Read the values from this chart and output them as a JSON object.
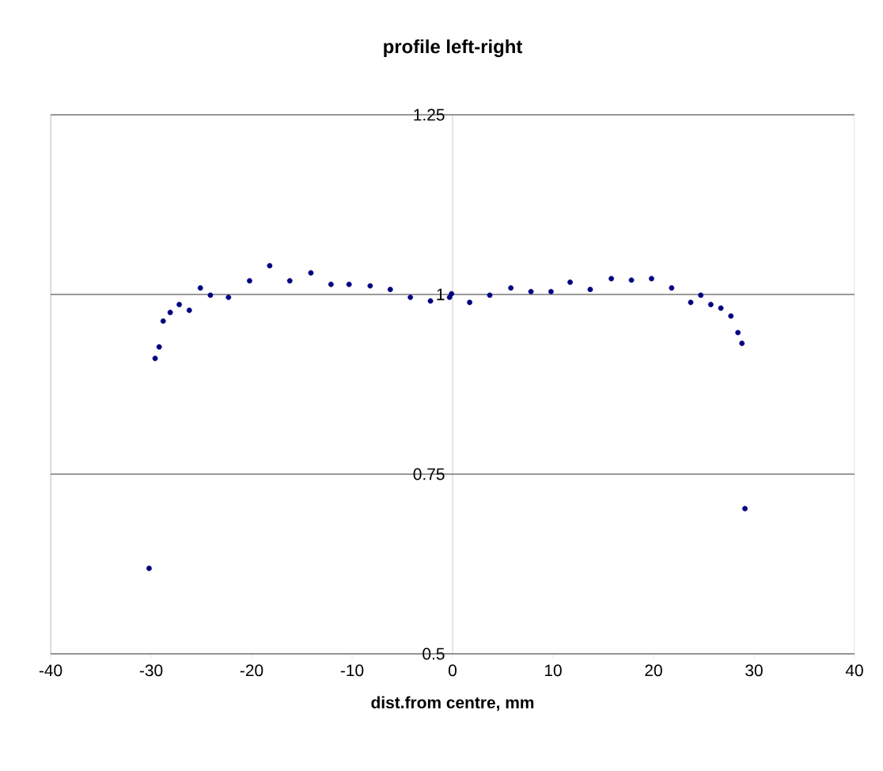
{
  "chart_data": {
    "type": "scatter",
    "title": "profile left-right",
    "xlabel": "dist.from centre, mm",
    "xlim": [
      -40,
      40
    ],
    "xticks": [
      -40,
      -30,
      -20,
      -10,
      0,
      10,
      20,
      30,
      40
    ],
    "ylim": [
      0.5,
      1.25
    ],
    "yticks": [
      0.5,
      0.75,
      1,
      1.25
    ],
    "grid": "y",
    "marker": "circle",
    "series": [
      {
        "color": "#000080",
        "x": [
          -30.2,
          -29.6,
          -29.2,
          -28.8,
          -28.1,
          -27.2,
          -26.2,
          -25.1,
          -24.1,
          -22.3,
          -20.2,
          -18.2,
          -16.2,
          -14.1,
          -12.1,
          -10.3,
          -8.2,
          -6.2,
          -4.2,
          -2.2,
          -0.3,
          -0.1,
          1.7,
          3.7,
          5.8,
          7.8,
          9.8,
          11.7,
          13.7,
          15.8,
          17.8,
          19.8,
          21.8,
          23.7,
          24.7,
          25.7,
          26.7,
          27.7,
          28.4,
          28.8,
          29.1
        ],
        "values": [
          0.619,
          0.911,
          0.927,
          0.963,
          0.975,
          0.986,
          0.978,
          1.009,
          0.999,
          0.996,
          1.019,
          1.04,
          1.019,
          1.03,
          1.014,
          1.014,
          1.012,
          1.007,
          0.996,
          0.991,
          0.996,
          1.001,
          0.989,
          0.999,
          1.009,
          1.004,
          1.004,
          1.017,
          1.007,
          1.022,
          1.02,
          1.022,
          1.009,
          0.989,
          0.999,
          0.986,
          0.981,
          0.97,
          0.947,
          0.932,
          0.702
        ]
      }
    ]
  }
}
